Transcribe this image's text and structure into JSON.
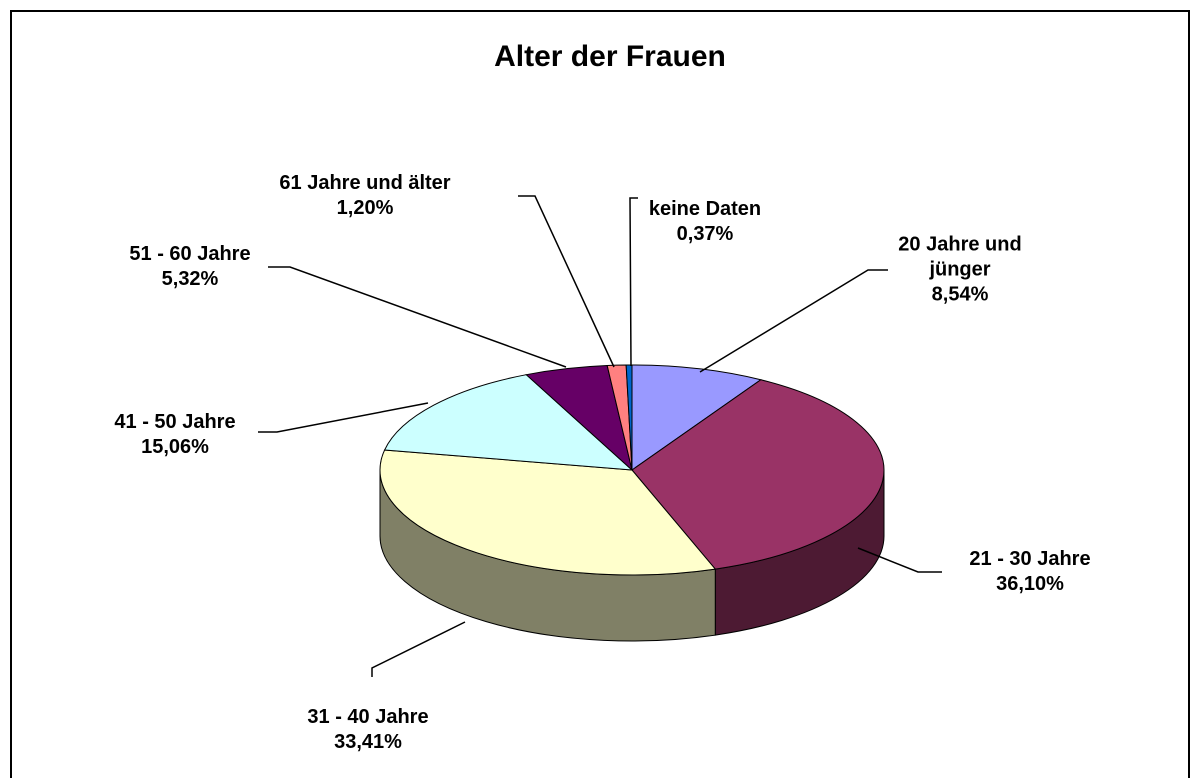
{
  "chart_data": {
    "type": "pie",
    "title": "Alter der Frauen",
    "categories": [
      "20 Jahre und jünger",
      "21 - 30 Jahre",
      "31 - 40 Jahre",
      "41 - 50 Jahre",
      "51 - 60 Jahre",
      "61 Jahre und älter",
      "keine Daten"
    ],
    "values": [
      8.54,
      36.1,
      33.41,
      15.06,
      5.32,
      1.2,
      0.37
    ],
    "value_labels": [
      "8,54%",
      "36,10%",
      "33,41%",
      "15,06%",
      "5,32%",
      "1,20%",
      "0,37%"
    ],
    "colors": [
      "#9999ff",
      "#993366",
      "#ffffcc",
      "#ccffff",
      "#660066",
      "#ff8080",
      "#0066cc"
    ]
  }
}
